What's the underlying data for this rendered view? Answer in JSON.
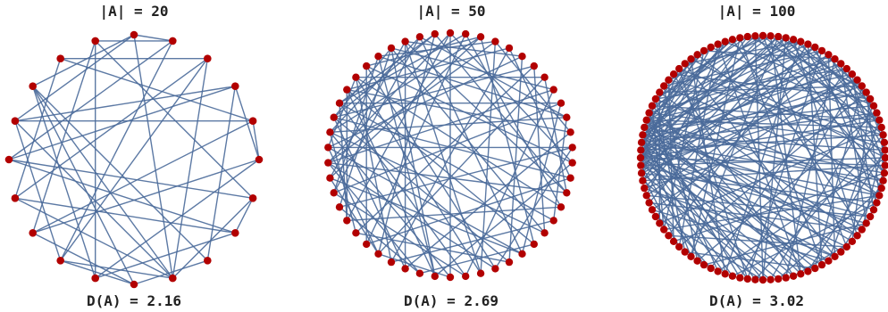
{
  "panels": [
    {
      "title": "|A| = 20",
      "caption": "D(A) = 2.16",
      "n": 20,
      "edges": [
        [
          9,
          0
        ],
        [
          9,
          2
        ],
        [
          9,
          6
        ],
        [
          9,
          12
        ],
        [
          9,
          14
        ],
        [
          9,
          16
        ],
        [
          9,
          17
        ],
        [
          8,
          17
        ],
        [
          8,
          3
        ],
        [
          8,
          10
        ],
        [
          1,
          0
        ],
        [
          1,
          15
        ],
        [
          1,
          19
        ],
        [
          7,
          6
        ],
        [
          7,
          15
        ],
        [
          7,
          14
        ],
        [
          5,
          13
        ],
        [
          5,
          11
        ],
        [
          4,
          5
        ],
        [
          4,
          18
        ],
        [
          10,
          12
        ],
        [
          10,
          13
        ],
        [
          11,
          17
        ],
        [
          12,
          16
        ],
        [
          13,
          19
        ],
        [
          14,
          2
        ],
        [
          15,
          3
        ],
        [
          16,
          0
        ],
        [
          19,
          6
        ],
        [
          18,
          2
        ],
        [
          3,
          16
        ],
        [
          0,
          17
        ],
        [
          2,
          12
        ],
        [
          17,
          10
        ],
        [
          11,
          7
        ],
        [
          6,
          15
        ],
        [
          4,
          13
        ],
        [
          5,
          3
        ],
        [
          19,
          11
        ],
        [
          14,
          18
        ],
        [
          1,
          12
        ],
        [
          16,
          4
        ]
      ]
    },
    {
      "title": "|A| = 50",
      "caption": "D(A) = 2.69",
      "n": 50,
      "edges": [
        [
          37,
          0
        ],
        [
          37,
          3
        ],
        [
          37,
          8
        ],
        [
          37,
          15
        ],
        [
          37,
          22
        ],
        [
          37,
          27
        ],
        [
          38,
          5
        ],
        [
          38,
          12
        ],
        [
          38,
          20
        ],
        [
          38,
          30
        ],
        [
          39,
          2
        ],
        [
          39,
          10
        ],
        [
          39,
          18
        ],
        [
          39,
          25
        ],
        [
          39,
          32
        ],
        [
          40,
          6
        ],
        [
          40,
          14
        ],
        [
          40,
          21
        ],
        [
          40,
          28
        ],
        [
          41,
          1
        ],
        [
          41,
          9
        ],
        [
          41,
          17
        ],
        [
          41,
          24
        ],
        [
          41,
          33
        ],
        [
          42,
          4
        ],
        [
          42,
          11
        ],
        [
          42,
          19
        ],
        [
          42,
          26
        ],
        [
          43,
          7
        ],
        [
          43,
          16
        ],
        [
          43,
          23
        ],
        [
          43,
          29
        ],
        [
          44,
          13
        ],
        [
          44,
          22
        ],
        [
          44,
          31
        ],
        [
          45,
          3
        ],
        [
          45,
          10
        ],
        [
          45,
          26
        ],
        [
          46,
          8
        ],
        [
          46,
          18
        ],
        [
          46,
          34
        ],
        [
          47,
          5
        ],
        [
          47,
          15
        ],
        [
          47,
          28
        ],
        [
          36,
          2
        ],
        [
          36,
          20
        ],
        [
          36,
          30
        ],
        [
          35,
          9
        ],
        [
          35,
          24
        ],
        [
          34,
          12
        ],
        [
          34,
          27
        ],
        [
          33,
          0
        ],
        [
          33,
          16
        ],
        [
          32,
          6
        ],
        [
          32,
          21
        ],
        [
          31,
          1
        ],
        [
          31,
          14
        ],
        [
          30,
          7
        ],
        [
          30,
          25
        ],
        [
          29,
          4
        ],
        [
          29,
          17
        ],
        [
          28,
          11
        ],
        [
          27,
          19
        ],
        [
          26,
          13
        ],
        [
          25,
          0
        ],
        [
          24,
          8
        ],
        [
          23,
          3
        ],
        [
          22,
          12
        ],
        [
          21,
          5
        ],
        [
          20,
          9
        ],
        [
          19,
          2
        ],
        [
          18,
          6
        ],
        [
          17,
          10
        ],
        [
          16,
          1
        ],
        [
          15,
          7
        ],
        [
          14,
          4
        ],
        [
          13,
          0
        ],
        [
          11,
          3
        ],
        [
          48,
          20
        ],
        [
          48,
          10
        ],
        [
          49,
          30
        ],
        [
          49,
          15
        ],
        [
          48,
          35
        ],
        [
          49,
          40
        ],
        [
          45,
          35
        ],
        [
          46,
          26
        ],
        [
          47,
          36
        ],
        [
          44,
          2
        ],
        [
          43,
          38
        ],
        [
          42,
          33
        ],
        [
          39,
          48
        ],
        [
          41,
          49
        ],
        [
          40,
          46
        ],
        [
          23,
          47
        ]
      ]
    },
    {
      "title": "|A| = 100",
      "caption": "D(A) = 3.02",
      "n": 100,
      "edges": [
        [
          75,
          0
        ],
        [
          75,
          5
        ],
        [
          75,
          10
        ],
        [
          75,
          15
        ],
        [
          75,
          20
        ],
        [
          75,
          26
        ],
        [
          75,
          33
        ],
        [
          75,
          40
        ],
        [
          75,
          47
        ],
        [
          75,
          55
        ],
        [
          76,
          2
        ],
        [
          76,
          8
        ],
        [
          76,
          14
        ],
        [
          76,
          22
        ],
        [
          76,
          30
        ],
        [
          76,
          38
        ],
        [
          76,
          46
        ],
        [
          76,
          54
        ],
        [
          77,
          3
        ],
        [
          77,
          12
        ],
        [
          77,
          19
        ],
        [
          77,
          28
        ],
        [
          77,
          36
        ],
        [
          77,
          44
        ],
        [
          77,
          52
        ],
        [
          78,
          1
        ],
        [
          78,
          7
        ],
        [
          78,
          16
        ],
        [
          78,
          24
        ],
        [
          78,
          32
        ],
        [
          78,
          41
        ],
        [
          78,
          50
        ],
        [
          78,
          60
        ],
        [
          79,
          4
        ],
        [
          79,
          11
        ],
        [
          79,
          18
        ],
        [
          79,
          27
        ],
        [
          79,
          35
        ],
        [
          79,
          43
        ],
        [
          79,
          51
        ],
        [
          80,
          6
        ],
        [
          80,
          13
        ],
        [
          80,
          21
        ],
        [
          80,
          29
        ],
        [
          80,
          37
        ],
        [
          80,
          45
        ],
        [
          80,
          53
        ],
        [
          74,
          9
        ],
        [
          74,
          17
        ],
        [
          74,
          25
        ],
        [
          74,
          34
        ],
        [
          74,
          42
        ],
        [
          74,
          58
        ],
        [
          73,
          2
        ],
        [
          73,
          14
        ],
        [
          73,
          31
        ],
        [
          73,
          48
        ],
        [
          73,
          62
        ],
        [
          81,
          10
        ],
        [
          81,
          23
        ],
        [
          81,
          39
        ],
        [
          81,
          56
        ],
        [
          82,
          5
        ],
        [
          82,
          20
        ],
        [
          82,
          44
        ],
        [
          82,
          65
        ],
        [
          83,
          0
        ],
        [
          83,
          12
        ],
        [
          83,
          30
        ],
        [
          83,
          61
        ],
        [
          72,
          7
        ],
        [
          72,
          26
        ],
        [
          72,
          49
        ],
        [
          71,
          3
        ],
        [
          71,
          19
        ],
        [
          71,
          40
        ],
        [
          70,
          11
        ],
        [
          70,
          33
        ],
        [
          70,
          57
        ],
        [
          84,
          15
        ],
        [
          84,
          36
        ],
        [
          84,
          66
        ],
        [
          85,
          8
        ],
        [
          85,
          28
        ],
        [
          85,
          59
        ],
        [
          86,
          1
        ],
        [
          86,
          22
        ],
        [
          86,
          63
        ],
        [
          87,
          17
        ],
        [
          87,
          46
        ],
        [
          88,
          24
        ],
        [
          88,
          52
        ],
        [
          69,
          4
        ],
        [
          69,
          35
        ],
        [
          68,
          13
        ],
        [
          68,
          41
        ],
        [
          67,
          9
        ],
        [
          67,
          50
        ],
        [
          66,
          21
        ],
        [
          65,
          30
        ],
        [
          64,
          6
        ],
        [
          64,
          38
        ],
        [
          63,
          27
        ],
        [
          62,
          16
        ],
        [
          61,
          43
        ],
        [
          60,
          2
        ],
        [
          59,
          19
        ],
        [
          58,
          34
        ],
        [
          57,
          12
        ],
        [
          56,
          25
        ],
        [
          55,
          5
        ],
        [
          54,
          31
        ],
        [
          53,
          14
        ],
        [
          52,
          8
        ],
        [
          51,
          22
        ],
        [
          50,
          3
        ],
        [
          49,
          18
        ],
        [
          48,
          29
        ],
        [
          47,
          10
        ],
        [
          46,
          37
        ],
        [
          45,
          1
        ],
        [
          44,
          24
        ],
        [
          43,
          15
        ],
        [
          42,
          6
        ],
        [
          41,
          20
        ],
        [
          40,
          9
        ],
        [
          39,
          28
        ],
        [
          38,
          0
        ],
        [
          37,
          17
        ],
        [
          36,
          4
        ],
        [
          35,
          23
        ],
        [
          34,
          11
        ],
        [
          33,
          26
        ],
        [
          32,
          13
        ],
        [
          31,
          7
        ],
        [
          30,
          16
        ],
        [
          29,
          2
        ],
        [
          28,
          21
        ],
        [
          27,
          5
        ],
        [
          26,
          12
        ],
        [
          25,
          3
        ],
        [
          24,
          9
        ],
        [
          23,
          14
        ],
        [
          22,
          0
        ],
        [
          21,
          6
        ],
        [
          20,
          1
        ],
        [
          19,
          10
        ],
        [
          18,
          4
        ],
        [
          17,
          8
        ],
        [
          16,
          2
        ],
        [
          89,
          40
        ],
        [
          90,
          55
        ],
        [
          91,
          30
        ],
        [
          92,
          65
        ],
        [
          93,
          20
        ],
        [
          94,
          45
        ],
        [
          95,
          70
        ],
        [
          96,
          35
        ],
        [
          97,
          60
        ],
        [
          98,
          15
        ],
        [
          99,
          50
        ],
        [
          89,
          5
        ],
        [
          90,
          25
        ],
        [
          91,
          75
        ],
        [
          92,
          10
        ],
        [
          93,
          85
        ],
        [
          94,
          62
        ],
        [
          95,
          18
        ],
        [
          96,
          80
        ],
        [
          97,
          42
        ],
        [
          98,
          72
        ],
        [
          99,
          27
        ],
        [
          76,
          90
        ],
        [
          77,
          95
        ],
        [
          78,
          99
        ],
        [
          79,
          92
        ],
        [
          80,
          97
        ],
        [
          74,
          88
        ],
        [
          73,
          93
        ],
        [
          81,
          96
        ],
        [
          82,
          91
        ],
        [
          83,
          98
        ]
      ]
    }
  ]
}
